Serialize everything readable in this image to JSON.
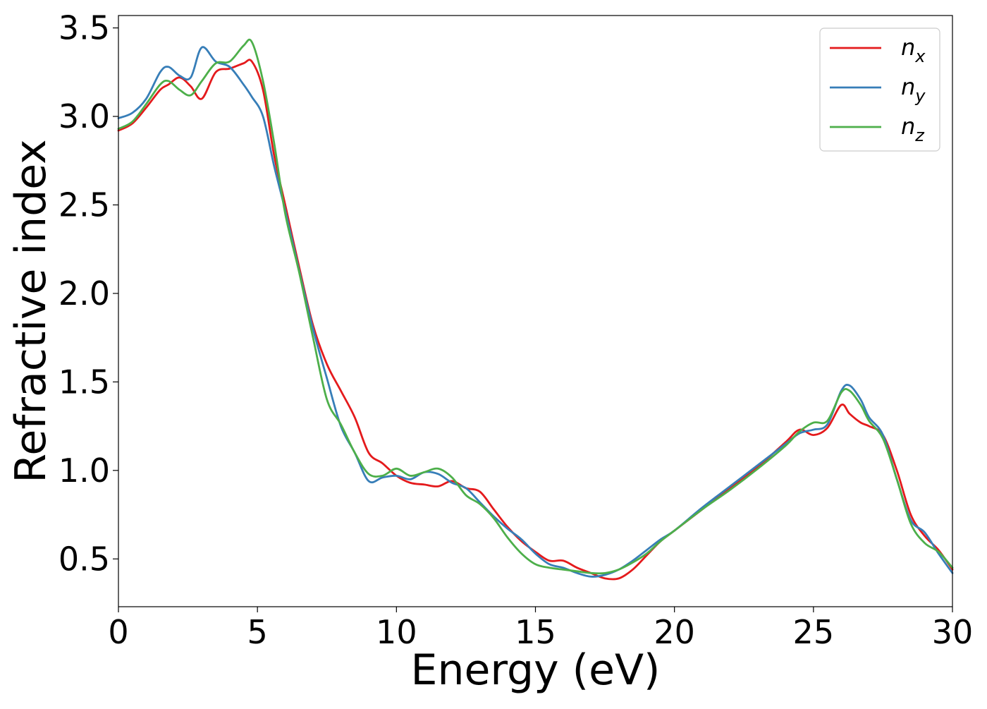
{
  "chart_data": {
    "type": "line",
    "title": "",
    "xlabel": "Energy (eV)",
    "ylabel": "Refractive index",
    "xlim": [
      0,
      30
    ],
    "ylim": [
      0.23,
      3.57
    ],
    "xticks": [
      "0",
      "5",
      "10",
      "15",
      "20",
      "25",
      "30"
    ],
    "yticks": [
      "0.5",
      "1.0",
      "1.5",
      "2.0",
      "2.5",
      "3.0",
      "3.5"
    ],
    "grid": false,
    "legend_position": "top-right",
    "x": [
      0,
      0.5,
      1,
      1.5,
      1.8,
      2.2,
      2.6,
      3,
      3.5,
      4,
      4.5,
      4.8,
      5.2,
      5.6,
      6,
      6.5,
      7,
      7.5,
      8,
      8.5,
      9,
      9.5,
      10,
      10.5,
      11,
      11.5,
      12,
      12.5,
      13,
      13.5,
      14,
      14.5,
      15,
      15.5,
      16,
      16.5,
      17,
      17.5,
      18,
      18.5,
      19,
      19.5,
      20,
      21,
      22,
      23,
      24,
      24.5,
      25,
      25.5,
      26,
      26.3,
      26.7,
      27,
      27.5,
      28,
      28.5,
      29,
      29.5,
      30
    ],
    "series": [
      {
        "name": "n",
        "subscript": "x",
        "color": "#e41a1c",
        "values": [
          2.92,
          2.96,
          3.05,
          3.15,
          3.18,
          3.22,
          3.17,
          3.1,
          3.25,
          3.27,
          3.3,
          3.31,
          3.15,
          2.78,
          2.5,
          2.15,
          1.82,
          1.6,
          1.45,
          1.3,
          1.1,
          1.04,
          0.97,
          0.93,
          0.92,
          0.91,
          0.94,
          0.9,
          0.88,
          0.78,
          0.68,
          0.6,
          0.54,
          0.49,
          0.49,
          0.45,
          0.42,
          0.39,
          0.39,
          0.44,
          0.52,
          0.6,
          0.66,
          0.78,
          0.9,
          1.02,
          1.16,
          1.23,
          1.2,
          1.24,
          1.37,
          1.32,
          1.27,
          1.25,
          1.2,
          1.0,
          0.75,
          0.63,
          0.55,
          0.44
        ]
      },
      {
        "name": "n",
        "subscript": "y",
        "color": "#377eb8",
        "values": [
          2.99,
          3.02,
          3.1,
          3.25,
          3.28,
          3.23,
          3.22,
          3.39,
          3.31,
          3.28,
          3.18,
          3.11,
          3.0,
          2.72,
          2.47,
          2.13,
          1.8,
          1.52,
          1.25,
          1.1,
          0.94,
          0.96,
          0.97,
          0.95,
          0.99,
          0.98,
          0.93,
          0.9,
          0.82,
          0.74,
          0.67,
          0.61,
          0.53,
          0.47,
          0.45,
          0.42,
          0.4,
          0.41,
          0.44,
          0.49,
          0.55,
          0.61,
          0.66,
          0.79,
          0.91,
          1.03,
          1.15,
          1.21,
          1.23,
          1.26,
          1.45,
          1.48,
          1.4,
          1.3,
          1.2,
          0.95,
          0.72,
          0.65,
          0.53,
          0.42
        ]
      },
      {
        "name": "n",
        "subscript": "z",
        "color": "#4daf4a",
        "values": [
          2.93,
          2.97,
          3.07,
          3.18,
          3.2,
          3.15,
          3.12,
          3.2,
          3.3,
          3.31,
          3.4,
          3.42,
          3.2,
          2.85,
          2.45,
          2.12,
          1.75,
          1.4,
          1.26,
          1.1,
          0.98,
          0.97,
          1.01,
          0.97,
          0.99,
          1.01,
          0.96,
          0.86,
          0.81,
          0.73,
          0.62,
          0.53,
          0.47,
          0.45,
          0.44,
          0.43,
          0.42,
          0.42,
          0.44,
          0.48,
          0.53,
          0.6,
          0.66,
          0.78,
          0.89,
          1.01,
          1.14,
          1.22,
          1.27,
          1.28,
          1.44,
          1.45,
          1.37,
          1.28,
          1.18,
          0.95,
          0.7,
          0.59,
          0.54,
          0.45
        ]
      }
    ]
  }
}
